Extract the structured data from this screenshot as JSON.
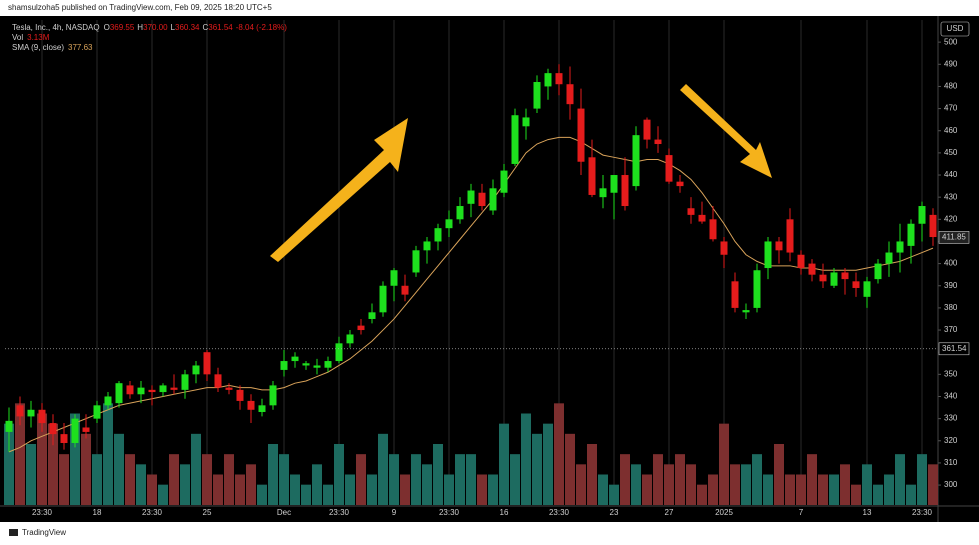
{
  "header": {
    "byline": "shamsulzoha5 published on TradingView.com, Feb 09, 2025 18:20 UTC+5",
    "brand": "TradingView"
  },
  "chart_data": {
    "type": "candlestick",
    "legend": {
      "symbol": "Tesla, Inc., 4h, NASDAQ",
      "o_label": "O",
      "o": "369.55",
      "h_label": "H",
      "h": "370.00",
      "l_label": "L",
      "l": "360.34",
      "c_label": "C",
      "c": "361.54",
      "change": "-8.04 (-2.18%)",
      "vol_label": "Vol",
      "vol": "3.13M",
      "sma_label": "SMA (9, close)",
      "sma": "377.63"
    },
    "currency": "USD",
    "categories": [
      null,
      null,
      null,
      "23:30",
      null,
      null,
      null,
      null,
      "18",
      null,
      null,
      null,
      null,
      "23:30",
      null,
      null,
      null,
      null,
      "25",
      null,
      null,
      null,
      null,
      null,
      null,
      "Dec",
      null,
      null,
      null,
      null,
      "23:30",
      null,
      null,
      null,
      null,
      "9",
      null,
      null,
      null,
      null,
      "23:30",
      null,
      null,
      null,
      null,
      "16",
      null,
      null,
      null,
      null,
      "23:30",
      null,
      null,
      null,
      null,
      "23",
      null,
      null,
      null,
      null,
      "27",
      null,
      null,
      null,
      null,
      "2025",
      null,
      null,
      null,
      null,
      null,
      null,
      "7",
      null,
      null,
      null,
      null,
      null,
      "13",
      null,
      null,
      null,
      null,
      "23:30",
      null
    ],
    "ohlc": [
      [
        324,
        335,
        315,
        329
      ],
      [
        336,
        340,
        327,
        331
      ],
      [
        331,
        338,
        326,
        334
      ],
      [
        334,
        337,
        324,
        328
      ],
      [
        328,
        332,
        318,
        323
      ],
      [
        323,
        328,
        316,
        319
      ],
      [
        319,
        332,
        317,
        330
      ],
      [
        326,
        332,
        321,
        324
      ],
      [
        330,
        338,
        328,
        336
      ],
      [
        336,
        342,
        334,
        340
      ],
      [
        337,
        347,
        335,
        346
      ],
      [
        345,
        347,
        339,
        341
      ],
      [
        341,
        347,
        337,
        344
      ],
      [
        343,
        345,
        336,
        342
      ],
      [
        342,
        346,
        340,
        345
      ],
      [
        344,
        350,
        341,
        343
      ],
      [
        343,
        352,
        339,
        350
      ],
      [
        350,
        356,
        346,
        354
      ],
      [
        360,
        361,
        347,
        350
      ],
      [
        350,
        353,
        342,
        344
      ],
      [
        344,
        346,
        341,
        343
      ],
      [
        343,
        345,
        334,
        338
      ],
      [
        338,
        341,
        328,
        334
      ],
      [
        333,
        339,
        331,
        336
      ],
      [
        336,
        347,
        334,
        345
      ],
      [
        352,
        361,
        349,
        356
      ],
      [
        356,
        360,
        353,
        358
      ],
      [
        354,
        356,
        352,
        355
      ],
      [
        353,
        357,
        350,
        354
      ],
      [
        353,
        358,
        351,
        356
      ],
      [
        356,
        367,
        355,
        364
      ],
      [
        364,
        370,
        362,
        368
      ],
      [
        372,
        375,
        368,
        370
      ],
      [
        375,
        382,
        373,
        378
      ],
      [
        378,
        392,
        376,
        390
      ],
      [
        390,
        398,
        383,
        397
      ],
      [
        390,
        395,
        383,
        386
      ],
      [
        396,
        408,
        394,
        406
      ],
      [
        406,
        412,
        400,
        410
      ],
      [
        410,
        418,
        406,
        416
      ],
      [
        416,
        424,
        412,
        420
      ],
      [
        420,
        430,
        418,
        426
      ],
      [
        427,
        436,
        421,
        433
      ],
      [
        432,
        436,
        424,
        426
      ],
      [
        424,
        438,
        422,
        434
      ],
      [
        432,
        445,
        430,
        442
      ],
      [
        445,
        470,
        444,
        467
      ],
      [
        462,
        470,
        456,
        466
      ],
      [
        470,
        485,
        468,
        482
      ],
      [
        480,
        488,
        474,
        486
      ],
      [
        486,
        490,
        476,
        481
      ],
      [
        481,
        489,
        465,
        472
      ],
      [
        470,
        479,
        440,
        446
      ],
      [
        448,
        456,
        430,
        431
      ],
      [
        430,
        440,
        425,
        434
      ],
      [
        432,
        440,
        420,
        440
      ],
      [
        440,
        448,
        424,
        426
      ],
      [
        435,
        462,
        433,
        458
      ],
      [
        465,
        466,
        452,
        456
      ],
      [
        456,
        462,
        450,
        454
      ],
      [
        449,
        452,
        436,
        437
      ],
      [
        437,
        440,
        432,
        435
      ],
      [
        425,
        430,
        418,
        422
      ],
      [
        422,
        428,
        418,
        419
      ],
      [
        420,
        426,
        410,
        411
      ],
      [
        410,
        412,
        398,
        404
      ],
      [
        392,
        396,
        378,
        380
      ],
      [
        378,
        382,
        375,
        379
      ],
      [
        380,
        400,
        378,
        397
      ],
      [
        398,
        412,
        393,
        410
      ],
      [
        410,
        412,
        400,
        406
      ],
      [
        420,
        425,
        401,
        405
      ],
      [
        404,
        406,
        395,
        398
      ],
      [
        400,
        402,
        392,
        395
      ],
      [
        395,
        400,
        389,
        392
      ],
      [
        390,
        398,
        389,
        396
      ],
      [
        396,
        398,
        386,
        393
      ],
      [
        392,
        396,
        385,
        389
      ],
      [
        385,
        394,
        380,
        392
      ],
      [
        393,
        402,
        391,
        400
      ],
      [
        400,
        410,
        394,
        405
      ],
      [
        405,
        418,
        396,
        410
      ],
      [
        408,
        420,
        400,
        418
      ],
      [
        418,
        428,
        410,
        426
      ],
      [
        422,
        425,
        408,
        412
      ]
    ],
    "volume": [
      8,
      10,
      6,
      9,
      8,
      5,
      9,
      7,
      5,
      10,
      7,
      5,
      4,
      3,
      2,
      5,
      4,
      7,
      5,
      3,
      5,
      3,
      4,
      2,
      6,
      5,
      3,
      2,
      4,
      2,
      6,
      3,
      5,
      3,
      7,
      5,
      3,
      5,
      4,
      6,
      3,
      5,
      5,
      3,
      3,
      8,
      5,
      9,
      7,
      8,
      10,
      7,
      4,
      6,
      3,
      2,
      5,
      4,
      3,
      5,
      4,
      5,
      4,
      2,
      3,
      8,
      4,
      4,
      5,
      3,
      6,
      3,
      3,
      5,
      3,
      3,
      4,
      2,
      4,
      2,
      3,
      5,
      2,
      5,
      4
    ],
    "volume_lim": [
      0,
      12
    ],
    "sma_series": {
      "name": "SMA (9, close)",
      "color": "#d9a35a",
      "values": [
        315,
        317,
        320,
        322,
        324,
        326,
        328,
        330,
        332,
        334,
        336,
        337,
        338,
        339,
        340,
        341,
        342,
        343,
        344,
        344,
        345,
        344,
        344,
        343,
        343,
        344,
        346,
        347,
        349,
        351,
        354,
        357,
        361,
        365,
        370,
        375,
        381,
        387,
        393,
        399,
        405,
        411,
        417,
        423,
        429,
        436,
        443,
        450,
        454,
        456,
        457,
        457,
        455,
        452,
        449,
        448,
        447,
        446,
        447,
        447,
        445,
        442,
        438,
        432,
        425,
        418,
        410,
        404,
        401,
        399,
        399,
        399,
        398,
        398,
        397,
        397,
        397,
        397,
        398,
        399,
        400,
        401,
        403,
        405,
        407
      ]
    },
    "up_color": "#1ee01e",
    "down_color": "#e51c1c",
    "volume_up_color": "#1d6b60",
    "volume_down_color": "#7d2f2f",
    "last_price": 411.85,
    "close_line": 361.54,
    "ylim": [
      291,
      510
    ],
    "yticks": [
      300,
      310,
      320,
      330,
      340,
      350,
      360,
      370,
      380,
      390,
      400,
      410,
      420,
      430,
      440,
      450,
      460,
      470,
      480,
      490,
      500
    ],
    "grid": true
  }
}
